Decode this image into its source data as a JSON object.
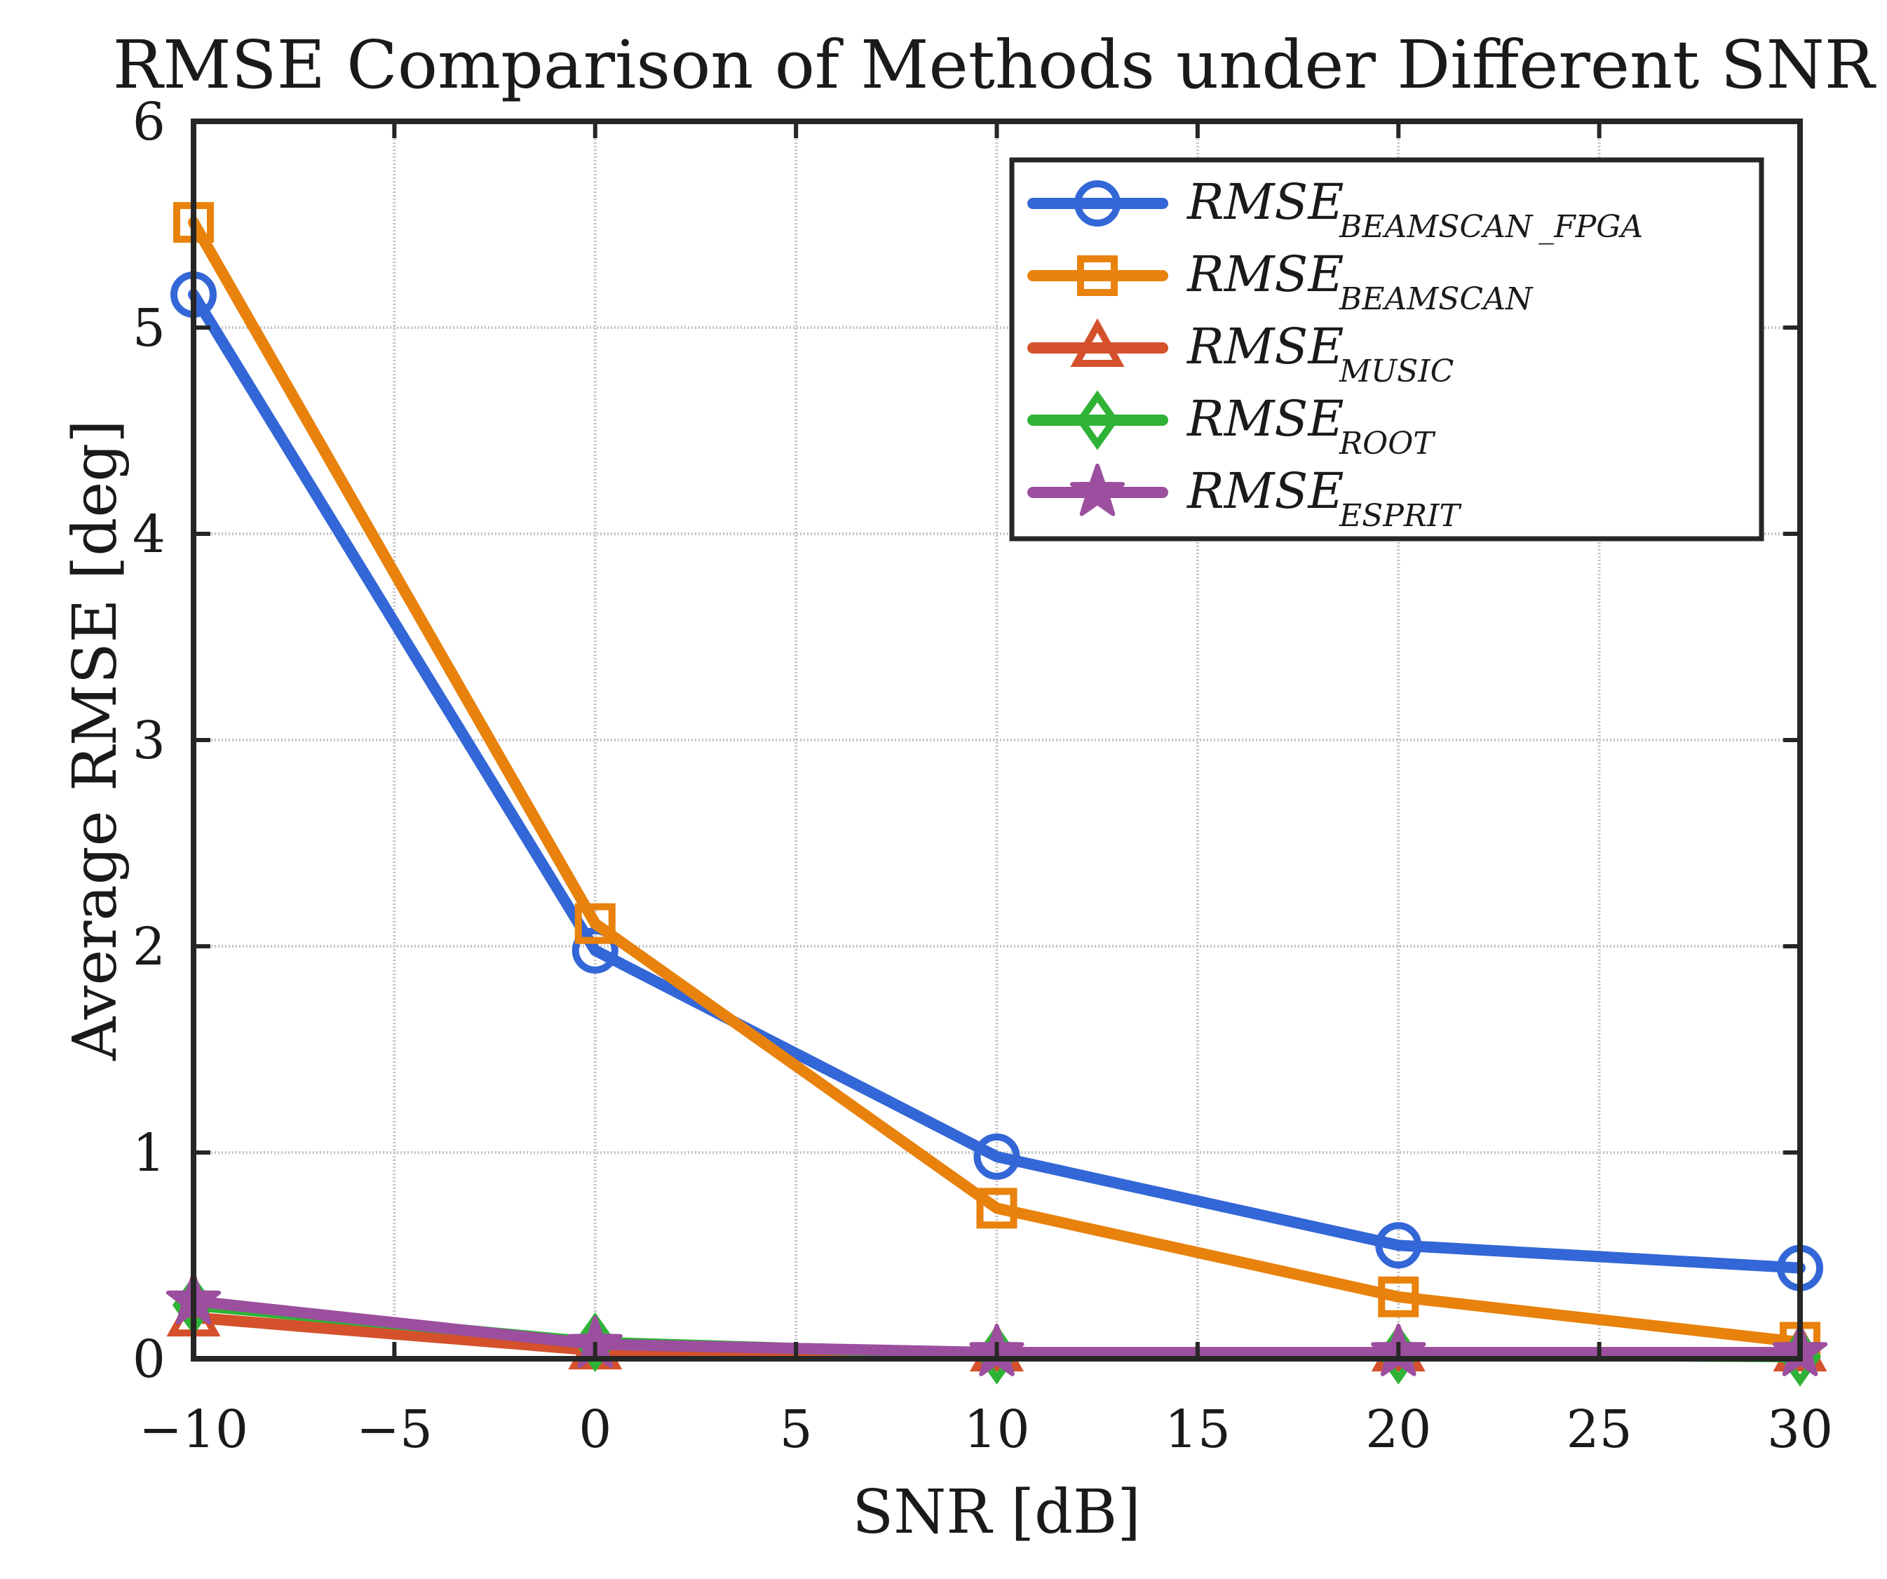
{
  "chart_data": {
    "type": "line",
    "title": "RMSE Comparison of Methods under Different SNR",
    "xlabel": "SNR [dB]",
    "ylabel": "Average RMSE [deg]",
    "xlim": [
      -10,
      30
    ],
    "ylim": [
      0,
      6
    ],
    "xticks": [
      -10,
      -5,
      0,
      5,
      10,
      15,
      20,
      25,
      30
    ],
    "xtick_labels": [
      "−10",
      "−5",
      "0",
      "5",
      "10",
      "15",
      "20",
      "25",
      "30"
    ],
    "yticks": [
      0,
      1,
      2,
      3,
      4,
      5,
      6
    ],
    "ytick_labels": [
      "0",
      "1",
      "2",
      "3",
      "4",
      "5",
      "6"
    ],
    "grid": true,
    "legend_position": "top-right",
    "x": [
      -10,
      0,
      10,
      20,
      30
    ],
    "series": [
      {
        "name": "RMSE",
        "subscript": "BEAMSCAN_FPGA",
        "subscript_display": "BEAMSCAN _FPGA",
        "color": "#3366d6",
        "marker": "circle",
        "values": [
          5.16,
          1.98,
          0.98,
          0.55,
          0.44
        ]
      },
      {
        "name": "RMSE",
        "subscript": "BEAMSCAN",
        "subscript_display": "BEAMSCAN",
        "color": "#e8820c",
        "marker": "square",
        "values": [
          5.51,
          2.11,
          0.73,
          0.3,
          0.08
        ]
      },
      {
        "name": "RMSE",
        "subscript": "MUSIC",
        "subscript_display": "MUSIC",
        "color": "#d4512b",
        "marker": "triangle",
        "values": [
          0.2,
          0.04,
          0.03,
          0.03,
          0.03
        ]
      },
      {
        "name": "RMSE",
        "subscript": "ROOT",
        "subscript_display": "ROOT",
        "color": "#2fb336",
        "marker": "diamond",
        "values": [
          0.26,
          0.08,
          0.02,
          0.02,
          0.01
        ]
      },
      {
        "name": "RMSE",
        "subscript": "ESPRIT",
        "subscript_display": "ESPRIT",
        "color": "#9b4f9e",
        "marker": "star",
        "values": [
          0.28,
          0.07,
          0.03,
          0.03,
          0.03
        ]
      }
    ]
  }
}
